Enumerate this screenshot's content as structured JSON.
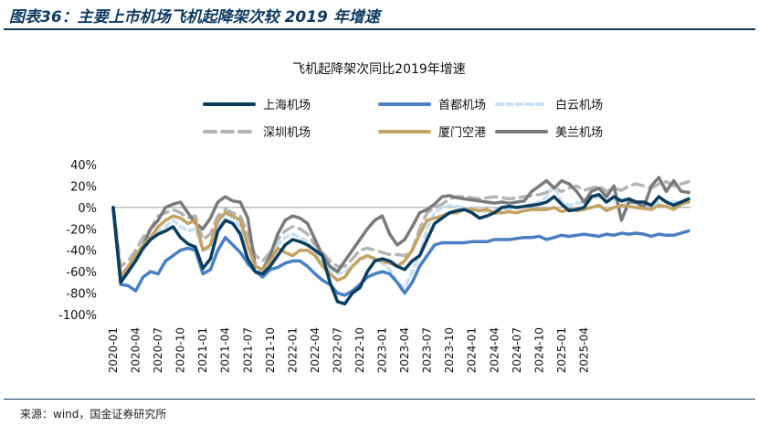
{
  "header": {
    "title": "图表36：主要上市机场飞机起降架次较 2019 年增速"
  },
  "source": "来源：wind，国金证券研究所",
  "colors": {
    "上海机场": "#0b3d5e",
    "首都机场": "#4a7fc1",
    "白云机场": "#c9dff2",
    "深圳机场": "#b4b4b4",
    "厦门空港": "#c4a263",
    "美兰机场": "#7a7a7a"
  },
  "chart_data": {
    "type": "line",
    "title": "飞机起降架次同比2019年增速",
    "ylim": [
      -100,
      40
    ],
    "yticks": [
      "40%",
      "20%",
      "0%",
      "-20%",
      "-40%",
      "-60%",
      "-80%",
      "-100%"
    ],
    "ytick_values": [
      40,
      20,
      0,
      -20,
      -40,
      -60,
      -80,
      -100
    ],
    "xticks": [
      "2020-01",
      "2020-04",
      "2020-07",
      "2020-10",
      "2021-01",
      "2021-04",
      "2021-07",
      "2021-10",
      "2022-01",
      "2022-04",
      "2022-07",
      "2022-10",
      "2023-01",
      "2023-04",
      "2023-07",
      "2023-10",
      "2024-01",
      "2024-04",
      "2024-07",
      "2024-10",
      "2025-01",
      "2025-04"
    ],
    "legend_placement": "top",
    "grid": false,
    "series": [
      {
        "name": "上海机场",
        "style": "solid",
        "values": [
          0,
          -70,
          -60,
          -50,
          -38,
          -30,
          -25,
          -22,
          -18,
          -28,
          -34,
          -37,
          -57,
          -48,
          -22,
          -12,
          -15,
          -25,
          -48,
          -60,
          -62,
          -55,
          -45,
          -35,
          -30,
          -32,
          -35,
          -40,
          -45,
          -70,
          -88,
          -90,
          -80,
          -75,
          -60,
          -50,
          -48,
          -50,
          -55,
          -58,
          -50,
          -45,
          -30,
          -15,
          -10,
          -5,
          -3,
          -2,
          -5,
          -10,
          -8,
          -5,
          0,
          1,
          0,
          1,
          2,
          3,
          5,
          10,
          3,
          -3,
          -2,
          0,
          10,
          12,
          5,
          10,
          6,
          8,
          5,
          5,
          2,
          10,
          5,
          2,
          5,
          8
        ]
      },
      {
        "name": "首都机场",
        "style": "solid",
        "values": [
          -2,
          -72,
          -73,
          -78,
          -65,
          -60,
          -62,
          -50,
          -45,
          -40,
          -38,
          -40,
          -62,
          -58,
          -40,
          -28,
          -35,
          -42,
          -52,
          -60,
          -65,
          -58,
          -56,
          -52,
          -50,
          -50,
          -55,
          -62,
          -68,
          -72,
          -80,
          -82,
          -78,
          -72,
          -65,
          -62,
          -60,
          -62,
          -70,
          -80,
          -70,
          -55,
          -45,
          -35,
          -33,
          -33,
          -33,
          -33,
          -32,
          -32,
          -32,
          -30,
          -30,
          -30,
          -29,
          -28,
          -28,
          -27,
          -30,
          -28,
          -26,
          -27,
          -26,
          -25,
          -26,
          -27,
          -25,
          -26,
          -24,
          -25,
          -24,
          -25,
          -27,
          -25,
          -26,
          -26,
          -24,
          -22
        ]
      },
      {
        "name": "白云机场",
        "style": "dash-light",
        "values": [
          -1,
          -62,
          -55,
          -48,
          -40,
          -30,
          -22,
          -18,
          -12,
          -18,
          -22,
          -20,
          -40,
          -38,
          -18,
          -5,
          -10,
          -18,
          -55,
          -60,
          -58,
          -48,
          -35,
          -28,
          -25,
          -28,
          -32,
          -42,
          -50,
          -58,
          -62,
          -60,
          -55,
          -50,
          -45,
          -48,
          -52,
          -58,
          -70,
          -75,
          -60,
          -45,
          -20,
          -5,
          0,
          2,
          1,
          0,
          -2,
          -3,
          -4,
          -2,
          -2,
          -1,
          0,
          1,
          3,
          5,
          10,
          20,
          5,
          2,
          4,
          5,
          8,
          10,
          5,
          7,
          6,
          5,
          4,
          3,
          2,
          5,
          6,
          5,
          5,
          6
        ]
      },
      {
        "name": "深圳机场",
        "style": "dash",
        "values": [
          -1,
          -55,
          -50,
          -40,
          -28,
          -20,
          -8,
          -5,
          -2,
          -5,
          -10,
          -8,
          -30,
          -25,
          -8,
          -2,
          -5,
          -8,
          -25,
          -45,
          -50,
          -42,
          -30,
          -22,
          -18,
          -20,
          -25,
          -35,
          -42,
          -50,
          -55,
          -55,
          -48,
          -40,
          -38,
          -40,
          -42,
          -44,
          -44,
          -45,
          -40,
          -20,
          -5,
          0,
          3,
          8,
          10,
          10,
          9,
          8,
          9,
          10,
          9,
          8,
          9,
          10,
          11,
          12,
          14,
          18,
          15,
          18,
          20,
          16,
          18,
          20,
          15,
          18,
          16,
          20,
          22,
          20,
          18,
          22,
          24,
          20,
          22,
          24
        ]
      },
      {
        "name": "厦门空港",
        "style": "solid",
        "values": [
          -1,
          -65,
          -55,
          -45,
          -35,
          -28,
          -18,
          -12,
          -8,
          -10,
          -15,
          -12,
          -40,
          -35,
          -12,
          -5,
          -8,
          -12,
          -35,
          -55,
          -58,
          -50,
          -38,
          -42,
          -45,
          -40,
          -40,
          -45,
          -55,
          -62,
          -68,
          -65,
          -55,
          -48,
          -45,
          -48,
          -50,
          -52,
          -55,
          -50,
          -40,
          -25,
          -12,
          -10,
          -8,
          -5,
          -5,
          -2,
          -2,
          -3,
          -2,
          -5,
          -5,
          -4,
          -5,
          -3,
          -2,
          -2,
          -2,
          0,
          -4,
          -2,
          -3,
          -2,
          0,
          2,
          -3,
          0,
          2,
          1,
          0,
          -1,
          -2,
          2,
          1,
          -2,
          3,
          5
        ]
      },
      {
        "name": "美兰机场",
        "style": "solid",
        "values": [
          0,
          -68,
          -58,
          -50,
          -35,
          -20,
          -12,
          0,
          3,
          5,
          -5,
          -15,
          -20,
          -10,
          5,
          10,
          6,
          5,
          -10,
          -55,
          -58,
          -45,
          -25,
          -12,
          -8,
          -10,
          -15,
          -30,
          -45,
          -55,
          -60,
          -50,
          -40,
          -30,
          -20,
          -12,
          -8,
          -25,
          -35,
          -30,
          -18,
          -5,
          -2,
          3,
          10,
          11,
          9,
          8,
          7,
          6,
          5,
          4,
          5,
          4,
          5,
          6,
          15,
          20,
          25,
          18,
          25,
          22,
          15,
          5,
          15,
          18,
          10,
          20,
          -12,
          5,
          5,
          0,
          20,
          28,
          15,
          25,
          15,
          14
        ]
      }
    ]
  }
}
